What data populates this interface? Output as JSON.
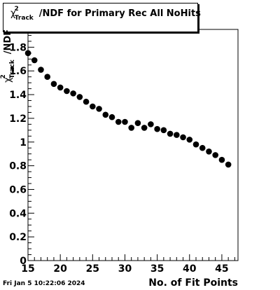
{
  "chart_data": {
    "type": "scatter",
    "title": "χ²_Track/NDF for Primary Rec All NoHits",
    "title_parts": {
      "chi": "χ",
      "sup": "2",
      "sub": "Track",
      "rest": "/NDF for Primary Rec All NoHits"
    },
    "xlabel": "No. of Fit Points",
    "ylabel": "χ²_Track/NDF",
    "ylabel_parts": {
      "chi": "χ",
      "sup": "2",
      "sub": "Track",
      "rest": "/NDF"
    },
    "xlim": [
      15,
      47.5
    ],
    "ylim": [
      0,
      1.95
    ],
    "x_ticks": [
      15,
      20,
      25,
      30,
      35,
      40,
      45
    ],
    "y_ticks": [
      0,
      0.2,
      0.4,
      0.6,
      0.8,
      1,
      1.2,
      1.4,
      1.6,
      1.8
    ],
    "y_tick_labels": [
      "0",
      "0.2",
      "0.4",
      "0.6",
      "0.8",
      "1",
      "1.2",
      "1.4",
      "1.6",
      "1.8"
    ],
    "marker_color": "#000000",
    "x": [
      15,
      16,
      17,
      18,
      19,
      20,
      21,
      22,
      23,
      24,
      25,
      26,
      27,
      28,
      29,
      30,
      31,
      32,
      33,
      34,
      35,
      36,
      37,
      38,
      39,
      40,
      41,
      42,
      43,
      44,
      45,
      46
    ],
    "y": [
      1.75,
      1.69,
      1.61,
      1.55,
      1.49,
      1.46,
      1.43,
      1.41,
      1.38,
      1.34,
      1.3,
      1.28,
      1.23,
      1.21,
      1.17,
      1.17,
      1.12,
      1.16,
      1.12,
      1.15,
      1.11,
      1.1,
      1.07,
      1.06,
      1.04,
      1.02,
      0.98,
      0.95,
      0.92,
      0.89,
      0.85,
      0.81
    ]
  },
  "timestamp": "Fri Jan  5 10:22:06 2024"
}
